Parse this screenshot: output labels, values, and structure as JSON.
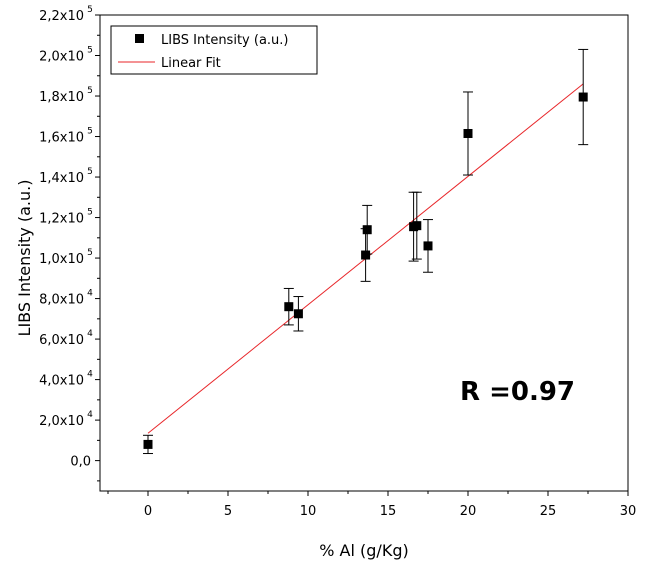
{
  "chart_data": {
    "type": "scatter",
    "xlabel": "% Al (g/Kg)",
    "ylabel": "LIBS Intensity (a.u.)",
    "xlim": [
      -3,
      30
    ],
    "ylim": [
      -15000,
      220000
    ],
    "x_ticks": [
      0,
      5,
      10,
      15,
      20,
      25,
      30
    ],
    "y_ticks": [
      {
        "value": 0,
        "mantissa": "0,0",
        "exp": ""
      },
      {
        "value": 20000,
        "mantissa": "2,0x10",
        "exp": "4"
      },
      {
        "value": 40000,
        "mantissa": "4,0x10",
        "exp": "4"
      },
      {
        "value": 60000,
        "mantissa": "6,0x10",
        "exp": "4"
      },
      {
        "value": 80000,
        "mantissa": "8,0x10",
        "exp": "4"
      },
      {
        "value": 100000,
        "mantissa": "1,0x10",
        "exp": "5"
      },
      {
        "value": 120000,
        "mantissa": "1,2x10",
        "exp": "5"
      },
      {
        "value": 140000,
        "mantissa": "1,4x10",
        "exp": "5"
      },
      {
        "value": 160000,
        "mantissa": "1,6x10",
        "exp": "5"
      },
      {
        "value": 180000,
        "mantissa": "1,8x10",
        "exp": "5"
      },
      {
        "value": 200000,
        "mantissa": "2,0x10",
        "exp": "5"
      },
      {
        "value": 220000,
        "mantissa": "2,2x10",
        "exp": "5"
      }
    ],
    "grid": false,
    "legend_placement": "top-left",
    "legend": {
      "scatter_label": "LIBS Intensity (a.u.)",
      "fit_label": "Linear Fit"
    },
    "series": [
      {
        "name": "LIBS Intensity (a.u.)",
        "points": [
          {
            "x": 0,
            "y": 8000,
            "err": 4500
          },
          {
            "x": 8.8,
            "y": 76000,
            "err": 9000
          },
          {
            "x": 9.4,
            "y": 72500,
            "err": 8500
          },
          {
            "x": 13.6,
            "y": 101500,
            "err": 13000
          },
          {
            "x": 13.7,
            "y": 114000,
            "err": 12000
          },
          {
            "x": 16.6,
            "y": 115500,
            "err": 17000
          },
          {
            "x": 16.8,
            "y": 116000,
            "err": 16500
          },
          {
            "x": 17.5,
            "y": 106000,
            "err": 13000
          },
          {
            "x": 20.0,
            "y": 161500,
            "err": 20500
          },
          {
            "x": 27.2,
            "y": 179500,
            "err": 23500
          }
        ]
      }
    ],
    "fit_line": {
      "x1": 0,
      "y1": 13500,
      "x2": 27.2,
      "y2": 186000
    },
    "annotation": "R =0.97",
    "colors": {
      "points": "#000000",
      "fit": "#e8262a",
      "axes": "#000000"
    }
  }
}
